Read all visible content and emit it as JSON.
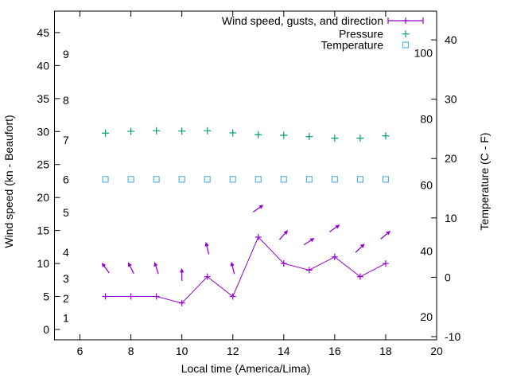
{
  "chart_data": {
    "type": "line",
    "title": "",
    "grid": false,
    "background": "#ffffff",
    "x_axis": {
      "label": "Local time (America/Lima)",
      "ticks": [
        6,
        8,
        10,
        12,
        14,
        16,
        18,
        20
      ],
      "range": [
        5,
        20
      ]
    },
    "left_axis": {
      "label": "Wind speed (kn - Beaufort)",
      "ticks_kn": [
        0,
        5,
        10,
        15,
        20,
        25,
        30,
        35,
        40,
        45
      ],
      "range_kn": [
        -1.57,
        48.25
      ],
      "beaufort_scale_labels": [
        {
          "bft": "1",
          "at_kn": 1
        },
        {
          "bft": "2",
          "at_kn": 4
        },
        {
          "bft": "3",
          "at_kn": 7
        },
        {
          "bft": "4",
          "at_kn": 11
        },
        {
          "bft": "5",
          "at_kn": 17
        },
        {
          "bft": "6",
          "at_kn": 22
        },
        {
          "bft": "7",
          "at_kn": 28
        },
        {
          "bft": "8",
          "at_kn": 34
        },
        {
          "bft": "9",
          "at_kn": 41
        }
      ]
    },
    "right_axis": {
      "label": "Temperature (C - F)",
      "ticks_c": [
        -10,
        0,
        10,
        20,
        30,
        40
      ],
      "range_c": [
        -10.54,
        44.84
      ],
      "inner_fahrenheit_labels": [
        20,
        40,
        60,
        80,
        100
      ]
    },
    "legend": {
      "position": "top-right",
      "entries": [
        {
          "label": "Wind speed, gusts, and direction",
          "glyph": "errorbar-plus",
          "color": "#9400d3"
        },
        {
          "label": "Pressure",
          "glyph": "plus",
          "color": "#009e73"
        },
        {
          "label": "Temperature",
          "glyph": "open-square",
          "color": "#56b4e9"
        }
      ]
    },
    "hours": [
      7,
      8,
      9,
      10,
      11,
      12,
      13,
      14,
      15,
      16,
      17,
      18
    ],
    "series": [
      {
        "name": "Wind speed, gusts, and direction",
        "color": "#9400d3",
        "style": "line-with-plus-markers-and-direction-arrows",
        "wind_speed_kn": [
          5,
          5,
          5,
          4,
          8,
          5,
          14,
          10,
          9,
          11,
          8,
          10
        ],
        "wind_direction_deg_cw_from_up": [
          -36,
          -27,
          -18,
          0,
          -14,
          -14,
          55,
          42,
          57,
          55,
          46,
          50
        ]
      },
      {
        "name": "Pressure",
        "color": "#009e73",
        "style": "plus-markers",
        "axis": "unlabeled",
        "values_on_left_axis_scale": [
          29.76,
          30.04,
          30.12,
          30.07,
          30.12,
          29.8,
          29.52,
          29.43,
          29.23,
          28.99,
          28.99,
          29.34
        ]
      },
      {
        "name": "Temperature",
        "color": "#56b4e9",
        "style": "open-square-markers",
        "temperature_c": [
          16.5,
          16.5,
          16.5,
          16.5,
          16.5,
          16.5,
          16.5,
          16.5,
          16.5,
          16.5,
          16.5,
          16.5
        ]
      }
    ]
  }
}
